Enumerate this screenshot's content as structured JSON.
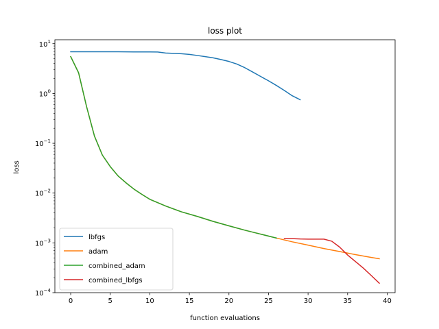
{
  "chart_data": {
    "type": "line",
    "title": "loss plot",
    "xlabel": "function evaluations",
    "ylabel": "loss",
    "xlim": [
      -2,
      41
    ],
    "ylim": [
      0.0001,
      12
    ],
    "yscale": "log",
    "xticks": [
      0,
      5,
      10,
      15,
      20,
      25,
      30,
      35,
      40
    ],
    "yticks": [
      {
        "value": 0.0001,
        "base": "10",
        "exp": "−4"
      },
      {
        "value": 0.001,
        "base": "10",
        "exp": "−3"
      },
      {
        "value": 0.01,
        "base": "10",
        "exp": "−2"
      },
      {
        "value": 0.1,
        "base": "10",
        "exp": "−1"
      },
      {
        "value": 1,
        "base": "10",
        "exp": "0"
      },
      {
        "value": 10,
        "base": "10",
        "exp": "1"
      }
    ],
    "grid": false,
    "legend_position": "lower-left",
    "series": [
      {
        "name": "lbfgs",
        "color": "#1f77b4",
        "x": [
          0,
          2,
          4,
          6,
          8,
          10,
          11,
          12,
          13,
          14,
          15,
          16,
          17,
          18,
          19,
          20,
          21,
          22,
          23,
          24,
          25,
          26,
          27,
          28,
          29
        ],
        "y": [
          6.9,
          6.9,
          6.9,
          6.9,
          6.85,
          6.85,
          6.8,
          6.5,
          6.4,
          6.3,
          6.1,
          5.8,
          5.5,
          5.2,
          4.8,
          4.4,
          3.9,
          3.3,
          2.7,
          2.2,
          1.8,
          1.45,
          1.15,
          0.9,
          0.75
        ]
      },
      {
        "name": "adam",
        "color": "#ff7f0e",
        "x": [
          0,
          1,
          2,
          3,
          4,
          5,
          6,
          7,
          8,
          9,
          10,
          12,
          14,
          16,
          18,
          20,
          22,
          24,
          26,
          28,
          30,
          32,
          34,
          36,
          38,
          39
        ],
        "y": [
          5.5,
          2.6,
          0.55,
          0.14,
          0.058,
          0.034,
          0.022,
          0.016,
          0.012,
          0.0094,
          0.0075,
          0.0055,
          0.0042,
          0.0034,
          0.0027,
          0.0022,
          0.0018,
          0.0015,
          0.00125,
          0.00105,
          0.0009,
          0.00077,
          0.00067,
          0.00058,
          0.00051,
          0.00048
        ]
      },
      {
        "name": "combined_adam",
        "color": "#2ca02c",
        "x": [
          0,
          1,
          2,
          3,
          4,
          5,
          6,
          7,
          8,
          9,
          10,
          12,
          14,
          16,
          18,
          20,
          22,
          24,
          26
        ],
        "y": [
          5.5,
          2.6,
          0.55,
          0.14,
          0.058,
          0.034,
          0.022,
          0.016,
          0.012,
          0.0094,
          0.0075,
          0.0055,
          0.0042,
          0.0034,
          0.0027,
          0.0022,
          0.0018,
          0.0015,
          0.00125
        ]
      },
      {
        "name": "combined_lbfgs",
        "color": "#d62728",
        "x": [
          27,
          28,
          29,
          30,
          31,
          32,
          33,
          34,
          35,
          36,
          37,
          38,
          39
        ],
        "y": [
          0.00122,
          0.00122,
          0.0012,
          0.00119,
          0.00119,
          0.00119,
          0.00108,
          0.00082,
          0.00057,
          0.00042,
          0.00031,
          0.00022,
          0.000155
        ]
      }
    ]
  }
}
